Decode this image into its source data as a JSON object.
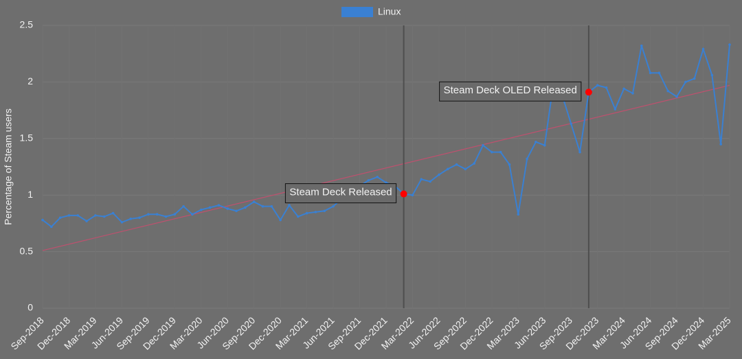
{
  "chart_data": {
    "type": "line",
    "categories": [
      "Sep-2018",
      null,
      null,
      "Dec-2018",
      null,
      null,
      "Mar-2019",
      null,
      null,
      "Jun-2019",
      null,
      null,
      "Sep-2019",
      null,
      null,
      "Dec-2019",
      null,
      null,
      "Mar-2020",
      null,
      null,
      "Jun-2020",
      null,
      null,
      "Sep-2020",
      null,
      null,
      "Dec-2020",
      null,
      null,
      "Mar-2021",
      null,
      null,
      "Jun-2021",
      null,
      null,
      "Sep-2021",
      null,
      null,
      "Dec-2021",
      null,
      null,
      "Mar-2022",
      null,
      null,
      "Jun-2022",
      null,
      null,
      "Sep-2022",
      null,
      null,
      "Dec-2022",
      null,
      null,
      "Mar-2023",
      null,
      null,
      "Jun-2023",
      null,
      null,
      "Sep-2023",
      null,
      null,
      "Dec-2023",
      null,
      null,
      "Mar-2024",
      null,
      null,
      "Jun-2024",
      null,
      null,
      "Sep-2024",
      null,
      null,
      "Dec-2024",
      null,
      null,
      "Mar-2025"
    ],
    "series": [
      {
        "name": "Linux",
        "color": "#3a80d2",
        "values": [
          0.78,
          0.72,
          0.8,
          0.82,
          0.82,
          0.77,
          0.82,
          0.81,
          0.84,
          0.76,
          0.79,
          0.8,
          0.83,
          0.83,
          0.81,
          0.83,
          0.9,
          0.83,
          0.87,
          0.89,
          0.91,
          0.88,
          0.86,
          0.89,
          0.94,
          0.9,
          0.9,
          0.78,
          0.91,
          0.81,
          0.84,
          0.85,
          0.86,
          0.9,
          0.97,
          1.02,
          1.08,
          1.13,
          1.16,
          1.11,
          1.08,
          1.01,
          1.0,
          1.14,
          1.12,
          1.18,
          1.23,
          1.27,
          1.23,
          1.28,
          1.44,
          1.38,
          1.38,
          1.27,
          0.83,
          1.32,
          1.47,
          1.44,
          1.99,
          1.88,
          1.63,
          1.38,
          1.91,
          1.97,
          1.95,
          1.76,
          1.94,
          1.9,
          2.32,
          2.08,
          2.08,
          1.92,
          1.87,
          2.0,
          2.03,
          2.29,
          2.06,
          1.45,
          2.33
        ]
      }
    ],
    "trend": {
      "color": "#c0506e",
      "values": [
        0.51,
        1.97
      ]
    },
    "annotations": [
      {
        "text": "Steam Deck Released",
        "at": 41,
        "value": 1.01
      },
      {
        "text": "Steam Deck OLED Released",
        "at": 62,
        "value": 1.91
      }
    ],
    "y_label": "Percentage of Steam users",
    "ylim": [
      0,
      2.5
    ],
    "yticks": [
      0,
      0.5,
      1.0,
      1.5,
      2.0,
      2.5
    ],
    "grid": true,
    "legend": "top"
  }
}
